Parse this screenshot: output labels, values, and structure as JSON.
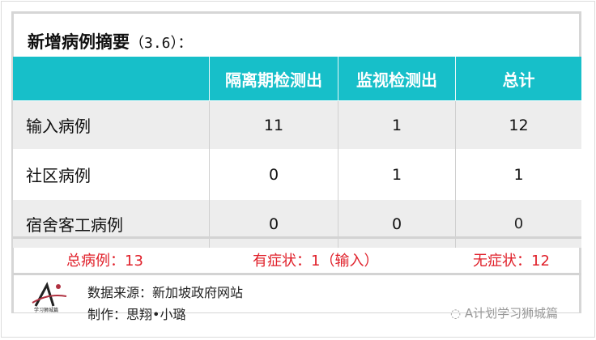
{
  "title": {
    "main": "新增病例摘要",
    "date": "（3.6）：",
    "date_suffix": ""
  },
  "table": {
    "headers": [
      "",
      "隔离期检测出",
      "监视检测出",
      "总计"
    ],
    "rows": [
      {
        "label": "输入病例",
        "values": [
          "11",
          "1",
          "12"
        ]
      },
      {
        "label": "社区病例",
        "values": [
          "0",
          "1",
          "1"
        ]
      },
      {
        "label": "宿舍客工病例",
        "values": [
          "0",
          "0",
          "0"
        ]
      }
    ]
  },
  "summary": {
    "total": "总病例：13",
    "symptomatic": "有症状：1（输入）",
    "asymptomatic": "无症状：12"
  },
  "credit": {
    "source": "数据来源：新加坡政府网站",
    "author": "制作：思翔•小璐",
    "watermark": "A计划学习狮城篇",
    "logo_text": "学习狮城篇"
  },
  "colors": {
    "header": "#17bfc9",
    "summary_text": "#e0202a"
  }
}
